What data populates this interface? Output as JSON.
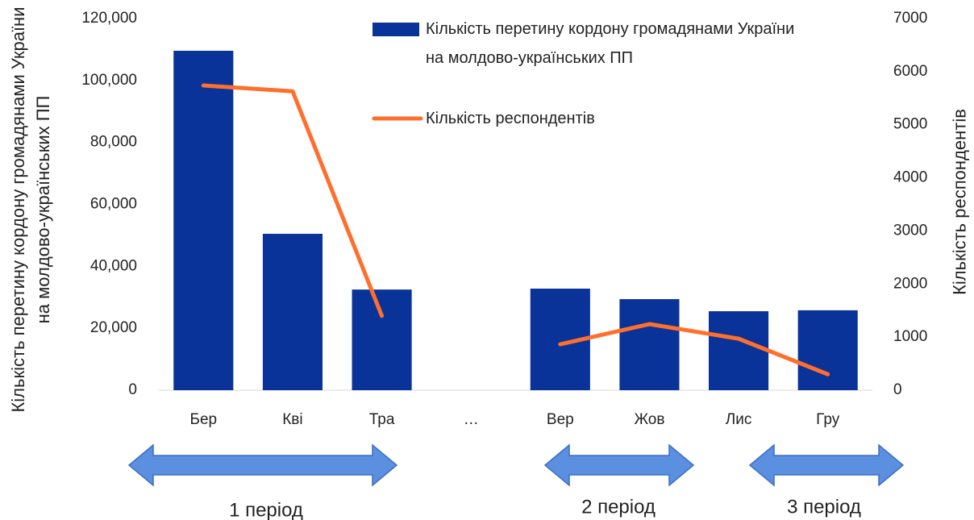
{
  "chart_data": {
    "type": "bar-line",
    "categories": [
      "Бер",
      "Кві",
      "Тра",
      "…",
      "Вер",
      "Жов",
      "Лис",
      "Гру"
    ],
    "series": [
      {
        "name": "Кількість перетину кордону громадянами України на молдово-українських ПП",
        "color": "#0a3399",
        "type": "bar",
        "values": [
          109600,
          50500,
          32500,
          null,
          32800,
          29400,
          25500,
          25800
        ]
      },
      {
        "name": "Кількість респондентів",
        "color": "#ff6f2c",
        "type": "line",
        "axis": "y2",
        "values": [
          5740,
          5630,
          1400,
          null,
          865,
          1245,
          970,
          300
        ]
      }
    ],
    "y_label": "Кількість перетину кордону громадянами України на молдово-українських ПП",
    "y2_label": "Кількість респондентів",
    "ylim": [
      0,
      120000
    ],
    "yticks": [
      0,
      {
        "value": 20000,
        "label": "20,000"
      },
      {
        "value": 40000,
        "label": "40,000"
      },
      {
        "value": 60000,
        "label": "60,000"
      },
      {
        "value": 80000,
        "label": "80,000"
      },
      {
        "value": 100000,
        "label": "100,000"
      },
      {
        "value": 120000,
        "label": "120,000"
      }
    ],
    "y2lim": [
      0,
      7000
    ],
    "y2ticks": [
      0,
      1000,
      2000,
      3000,
      4000,
      5000,
      6000,
      7000
    ],
    "annotations": [
      "1 період",
      "2 період",
      "3 період"
    ]
  }
}
